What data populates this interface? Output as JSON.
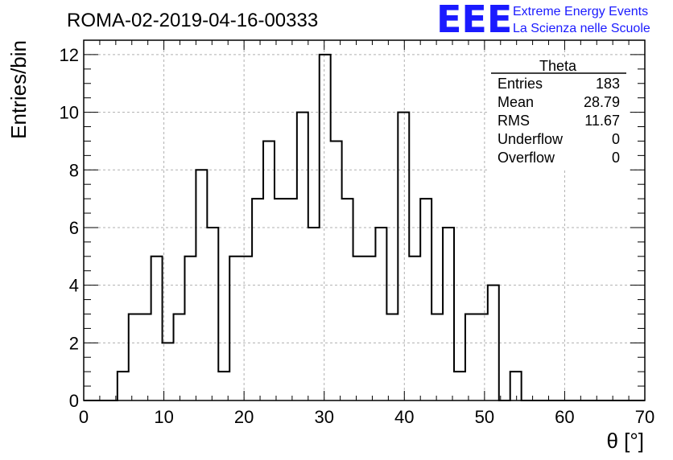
{
  "header": {
    "run_title": "ROMA-02-2019-04-16-00333",
    "logo_mark": "EEE",
    "logo_line1": "Extreme Energy Events",
    "logo_line2": "La Scienza nelle Scuole"
  },
  "stats_box": {
    "name": "Theta",
    "rows": [
      {
        "label": "Entries",
        "value": "183"
      },
      {
        "label": "Mean",
        "value": "28.79"
      },
      {
        "label": "RMS",
        "value": "11.67"
      },
      {
        "label": "Underflow",
        "value": "0"
      },
      {
        "label": "Overflow",
        "value": "0"
      }
    ]
  },
  "colors": {
    "histogram_line": "#000000",
    "grid": "#b0b0b0",
    "logo": "#1a1aff"
  },
  "chart_data": {
    "type": "histogram",
    "xlabel": "θ [°]",
    "ylabel": "Entries/bin",
    "xlim": [
      0,
      70
    ],
    "ylim": [
      0,
      12.5
    ],
    "x_ticks": [
      0,
      10,
      20,
      30,
      40,
      50,
      60,
      70
    ],
    "y_ticks": [
      0,
      2,
      4,
      6,
      8,
      10,
      12
    ],
    "grid": true,
    "bin_width": 1.4,
    "bin_start": 0,
    "values": [
      0,
      0,
      0,
      1,
      3,
      3,
      5,
      2,
      3,
      5,
      8,
      6,
      1,
      5,
      5,
      7,
      9,
      7,
      7,
      10,
      6,
      12,
      9,
      7,
      5,
      5,
      6,
      3,
      10,
      5,
      7,
      3,
      6,
      1,
      3,
      3,
      4,
      0,
      1,
      0,
      0,
      0,
      0,
      0,
      0,
      0,
      0,
      0,
      0,
      0
    ]
  }
}
